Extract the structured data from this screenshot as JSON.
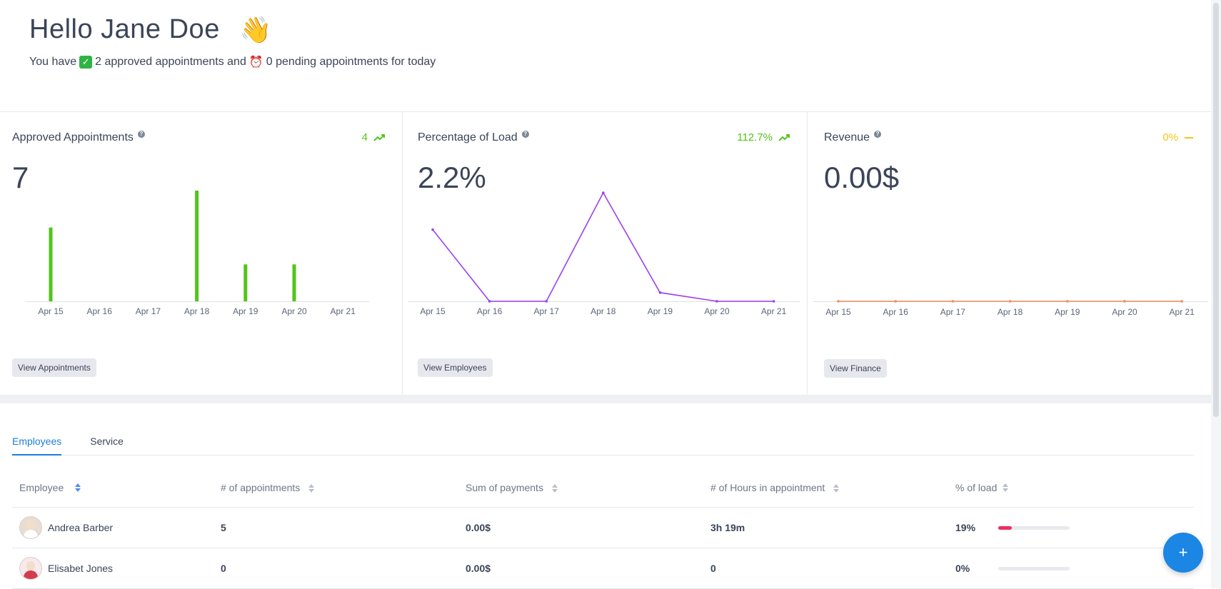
{
  "greeting": {
    "title": "Hello Jane Doe",
    "wave_emoji": "👋",
    "sub_prefix": "You have",
    "approved_text": "2 approved appointments and",
    "pending_text": "0 pending appointments for today"
  },
  "cards": {
    "approved": {
      "title": "Approved Appointments",
      "trend": "4",
      "value": "7",
      "button": "View Appointments",
      "trend_color": "#52c41a"
    },
    "load": {
      "title": "Percentage of Load",
      "trend": "112.7%",
      "value": "2.2%",
      "button": "View Employees",
      "trend_color": "#52c41a"
    },
    "revenue": {
      "title": "Revenue",
      "trend": "0%",
      "value": "0.00$",
      "button": "View Finance",
      "trend_color": "#f5c518"
    }
  },
  "chart_data": [
    {
      "type": "bar",
      "title": "Approved Appointments",
      "categories": [
        "Apr 15",
        "Apr 16",
        "Apr 17",
        "Apr 18",
        "Apr 19",
        "Apr 20",
        "Apr 21"
      ],
      "values": [
        2,
        0,
        0,
        3,
        1,
        1,
        0
      ],
      "ylim": [
        0,
        3
      ],
      "color": "#52c41a"
    },
    {
      "type": "line",
      "title": "Percentage of Load",
      "categories": [
        "Apr 15",
        "Apr 16",
        "Apr 17",
        "Apr 18",
        "Apr 19",
        "Apr 20",
        "Apr 21"
      ],
      "values": [
        6.6,
        0,
        0,
        10,
        0.8,
        0,
        0
      ],
      "ylim": [
        0,
        10
      ],
      "color": "#9b3ff0"
    },
    {
      "type": "line",
      "title": "Revenue",
      "categories": [
        "Apr 15",
        "Apr 16",
        "Apr 17",
        "Apr 18",
        "Apr 19",
        "Apr 20",
        "Apr 21"
      ],
      "values": [
        0,
        0,
        0,
        0,
        0,
        0,
        0
      ],
      "ylim": [
        0,
        1
      ],
      "color": "#f08a5d"
    }
  ],
  "tabs": [
    {
      "label": "Employees",
      "active": true
    },
    {
      "label": "Service",
      "active": false
    }
  ],
  "table": {
    "headers": [
      "Employee",
      "# of appointments",
      "Sum of payments",
      "# of Hours in appointment",
      "% of load"
    ],
    "rows": [
      {
        "name": "Andrea Barber",
        "appointments": "5",
        "payments": "0.00$",
        "hours": "3h 19m",
        "load": "19%",
        "load_value": 19
      },
      {
        "name": "Elisabet Jones",
        "appointments": "0",
        "payments": "0.00$",
        "hours": "0",
        "load": "0%",
        "load_value": 0
      }
    ]
  },
  "fab_label": "+"
}
